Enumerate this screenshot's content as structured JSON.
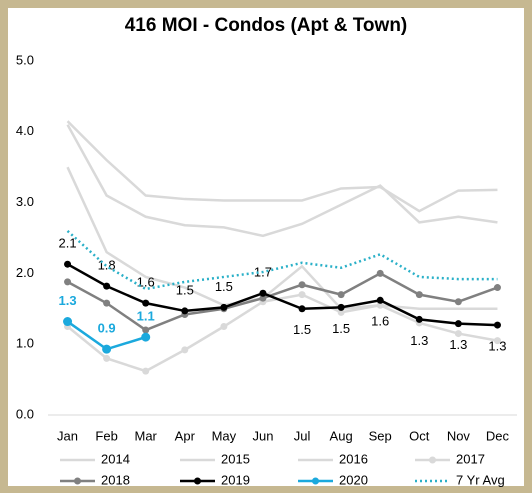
{
  "chart_data": {
    "type": "line",
    "title": "416 MOI - Condos (Apt & Town)",
    "categories": [
      "Jan",
      "Feb",
      "Mar",
      "Apr",
      "May",
      "Jun",
      "Jul",
      "Aug",
      "Sep",
      "Oct",
      "Nov",
      "Dec"
    ],
    "ylim": [
      0,
      5
    ],
    "yticks": [
      {
        "value": 0,
        "label": "0.0"
      },
      {
        "value": 1,
        "label": "1.0"
      },
      {
        "value": 2,
        "label": "2.0"
      },
      {
        "value": 3,
        "label": "3.0"
      },
      {
        "value": 4,
        "label": "4.0"
      },
      {
        "value": 5,
        "label": "5.0"
      }
    ],
    "series": [
      {
        "name": "2014",
        "color": "#d9d9d9",
        "values": [
          4.15,
          3.6,
          3.1,
          3.05,
          3.03,
          3.03,
          3.03,
          3.2,
          3.22,
          2.88,
          3.17,
          3.18
        ]
      },
      {
        "name": "2015",
        "color": "#d9d9d9",
        "values": [
          4.1,
          3.1,
          2.8,
          2.68,
          2.65,
          2.53,
          2.7,
          2.97,
          3.24,
          2.72,
          2.8,
          2.72
        ]
      },
      {
        "name": "2016",
        "color": "#d9d9d9",
        "values": [
          3.5,
          2.3,
          1.95,
          1.8,
          1.55,
          1.65,
          2.1,
          1.5,
          1.55,
          1.5,
          1.5,
          1.5
        ]
      },
      {
        "name": "2017",
        "color": "#d9d9d9",
        "marker": true,
        "values": [
          1.25,
          0.8,
          0.62,
          0.92,
          1.25,
          1.6,
          1.7,
          1.45,
          1.55,
          1.3,
          1.15,
          1.05
        ]
      },
      {
        "name": "2018",
        "color": "#808080",
        "marker": true,
        "values": [
          1.88,
          1.58,
          1.2,
          1.42,
          1.5,
          1.65,
          1.84,
          1.7,
          2.0,
          1.7,
          1.6,
          1.8
        ]
      },
      {
        "name": "2019",
        "color": "#000000",
        "marker": true,
        "values": [
          2.13,
          1.82,
          1.58,
          1.47,
          1.52,
          1.72,
          1.5,
          1.52,
          1.62,
          1.35,
          1.29,
          1.27
        ],
        "value_labels": [
          "2.1",
          "1.8",
          "1.6",
          "1.5",
          "1.5",
          "1.7",
          "1.5",
          "1.5",
          "1.6",
          "1.3",
          "1.3",
          "1.3"
        ]
      },
      {
        "name": "2020",
        "color": "#1ba9dd",
        "marker": true,
        "values": [
          1.32,
          0.93,
          1.1,
          null,
          null,
          null,
          null,
          null,
          null,
          null,
          null,
          null
        ],
        "value_labels": [
          "1.3",
          "0.9",
          "1.1",
          null,
          null,
          null,
          null,
          null,
          null,
          null,
          null,
          null
        ]
      },
      {
        "name": "7 Yr Avg",
        "color": "#2ab0c8",
        "dash": true,
        "values": [
          2.6,
          2.1,
          1.78,
          1.88,
          1.95,
          2.02,
          2.15,
          2.08,
          2.27,
          1.95,
          1.92,
          1.92
        ]
      }
    ]
  }
}
